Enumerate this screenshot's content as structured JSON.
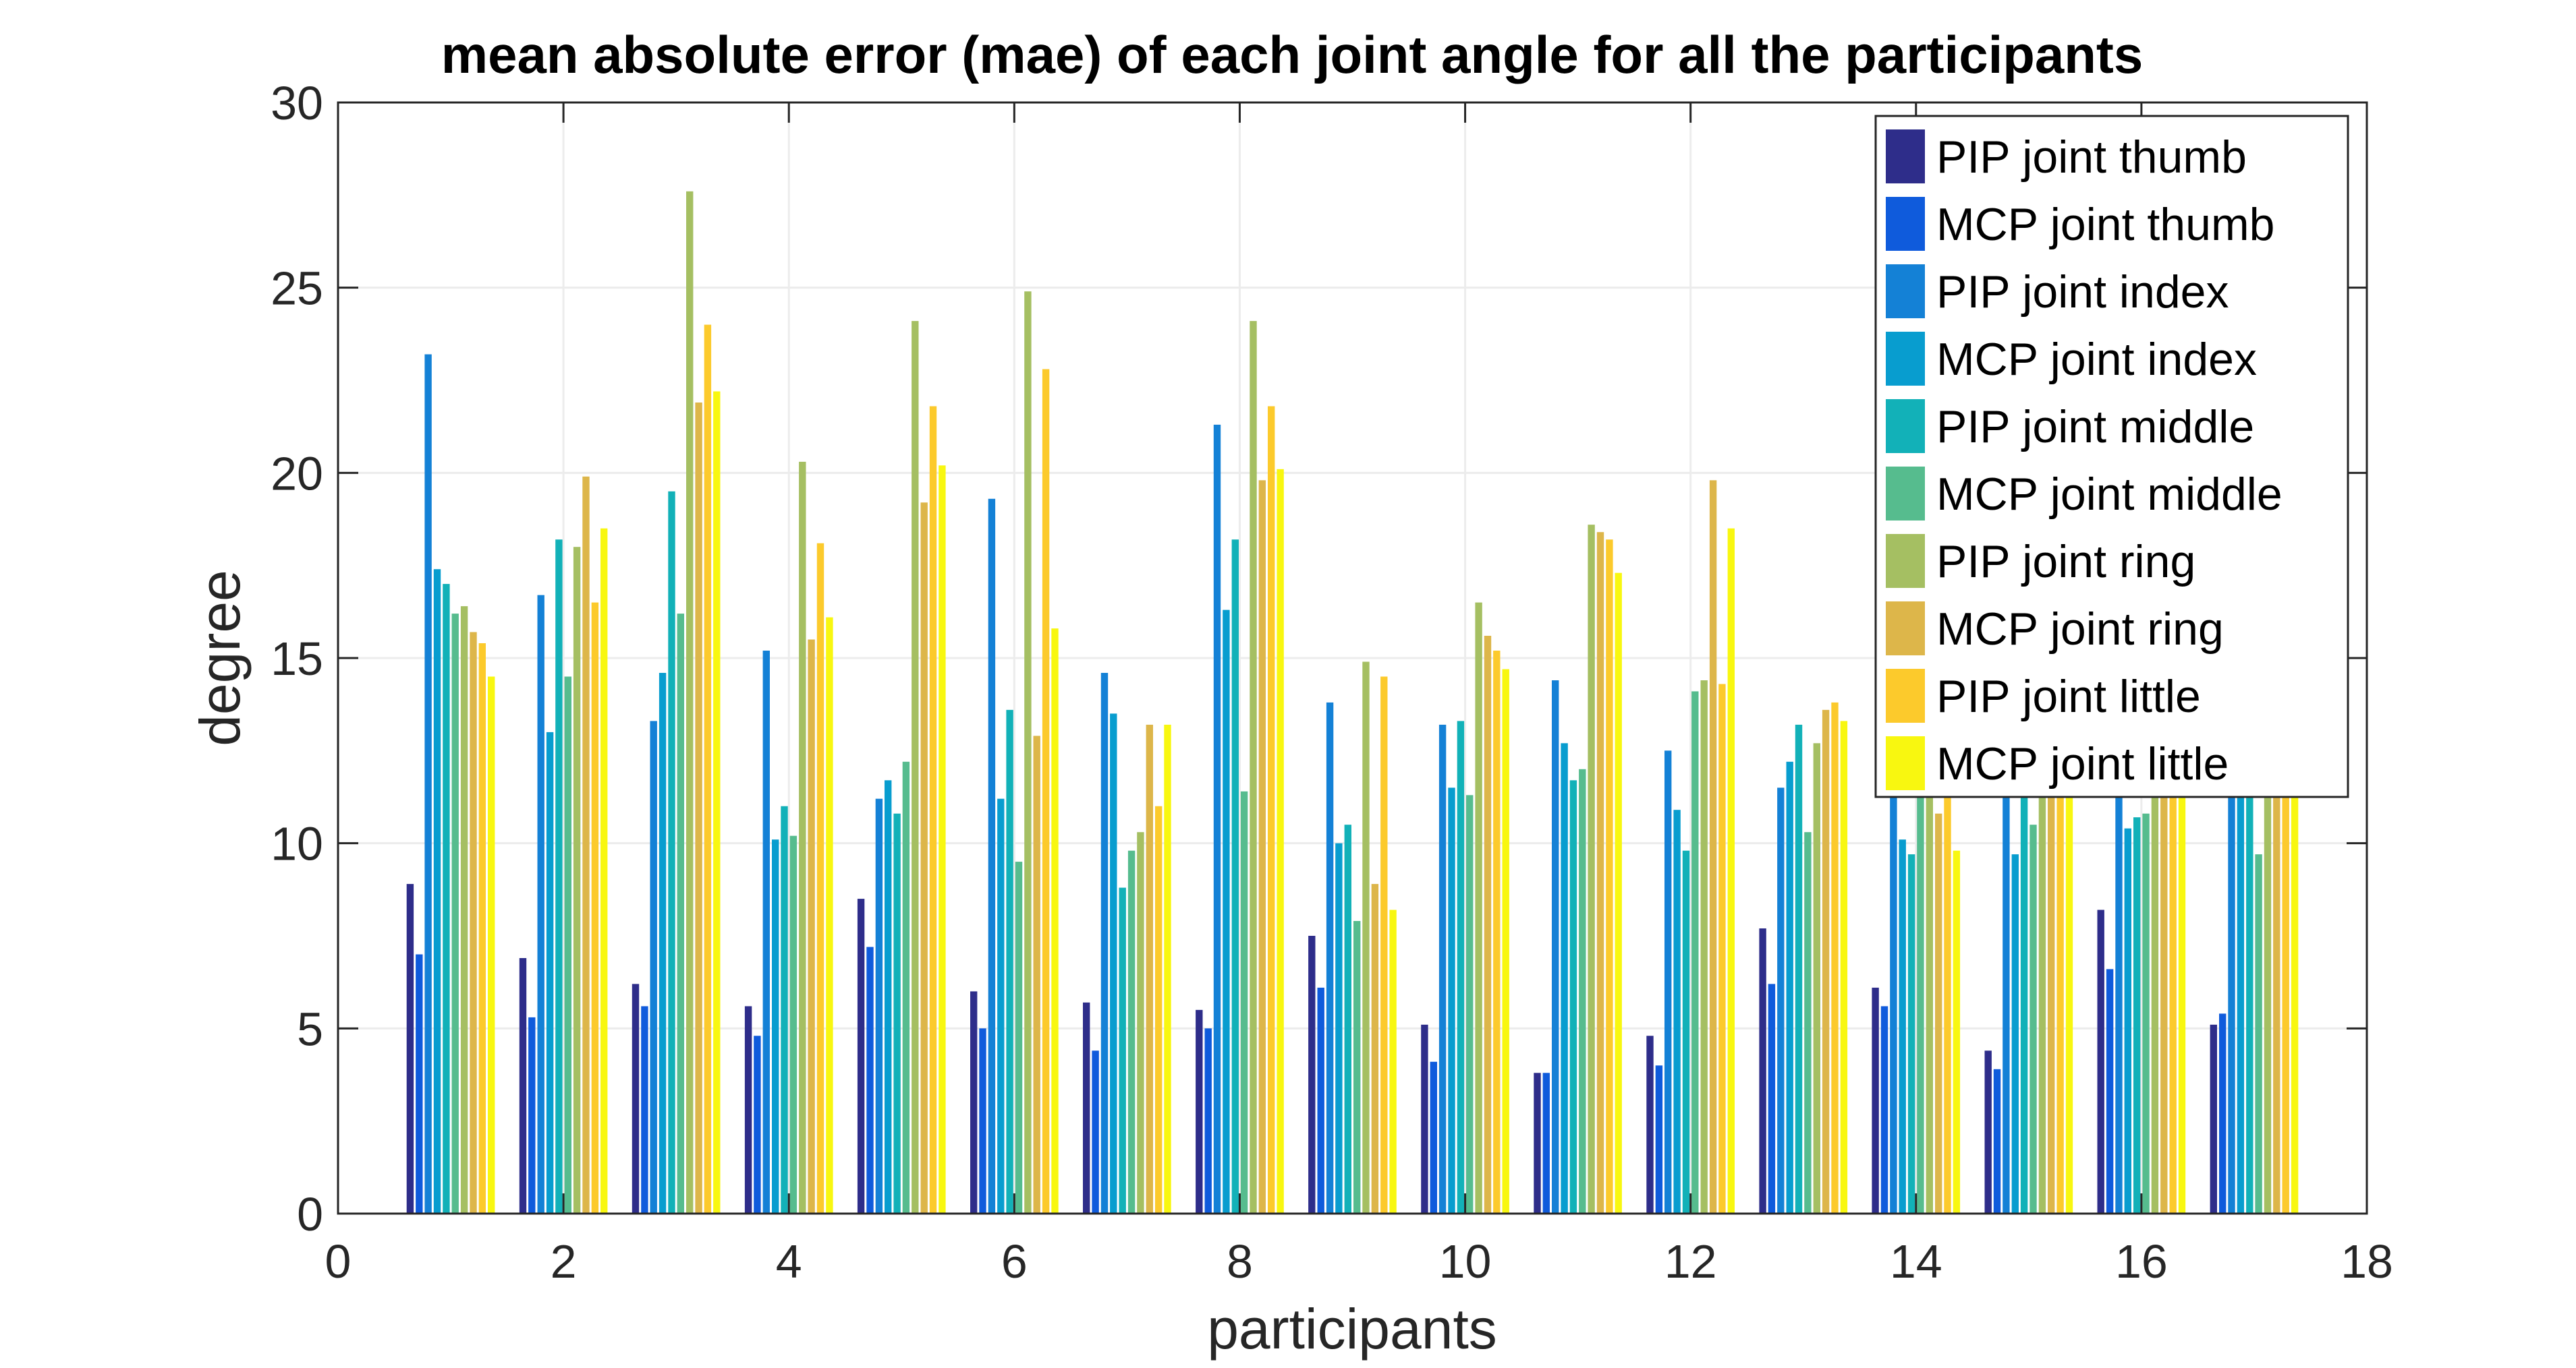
{
  "chart_data": {
    "type": "bar",
    "title": "mean absolute error (mae) of each joint angle for all the participants",
    "xlabel": "participants",
    "ylabel": "degree",
    "xlim": [
      0,
      18
    ],
    "ylim": [
      0,
      30
    ],
    "xticks": [
      0,
      2,
      4,
      6,
      8,
      10,
      12,
      14,
      16,
      18
    ],
    "yticks": [
      0,
      5,
      10,
      15,
      20,
      25,
      30
    ],
    "grid": true,
    "legend_position": "top-right",
    "categories": [
      1,
      2,
      3,
      4,
      5,
      6,
      7,
      8,
      9,
      10,
      11,
      12,
      13,
      14,
      15,
      16,
      17
    ],
    "series": [
      {
        "name": "PIP joint thumb",
        "color": "#2e2d8a",
        "values": [
          8.9,
          6.9,
          6.2,
          5.6,
          8.5,
          6.0,
          5.7,
          5.5,
          7.5,
          5.1,
          3.8,
          4.8,
          7.7,
          6.1,
          4.4,
          8.2,
          5.1
        ]
      },
      {
        "name": "MCP joint thumb",
        "color": "#0f5bdc",
        "values": [
          7.0,
          5.3,
          5.6,
          4.8,
          7.2,
          5.0,
          4.4,
          5.0,
          6.1,
          4.1,
          3.8,
          4.0,
          6.2,
          5.6,
          3.9,
          6.6,
          5.4
        ]
      },
      {
        "name": "PIP joint index",
        "color": "#1481d6",
        "values": [
          23.2,
          16.7,
          13.3,
          15.2,
          11.2,
          19.3,
          14.6,
          21.3,
          13.8,
          13.2,
          14.4,
          12.5,
          11.5,
          12.5,
          12.0,
          12.0,
          12.0
        ]
      },
      {
        "name": "MCP joint index",
        "color": "#089dcf",
        "values": [
          17.4,
          13.0,
          14.6,
          10.1,
          11.7,
          11.2,
          13.5,
          16.3,
          10.0,
          11.5,
          12.7,
          10.9,
          12.2,
          10.1,
          9.7,
          10.4,
          12.0
        ]
      },
      {
        "name": "PIP joint middle",
        "color": "#12b1b8",
        "values": [
          17.0,
          18.2,
          19.5,
          11.0,
          10.8,
          13.6,
          8.8,
          18.2,
          10.5,
          13.3,
          11.7,
          9.8,
          13.2,
          9.7,
          12.0,
          10.7,
          12.0
        ]
      },
      {
        "name": "MCP joint middle",
        "color": "#56bc8e",
        "values": [
          16.2,
          14.5,
          16.2,
          10.2,
          12.2,
          9.5,
          9.8,
          11.4,
          7.9,
          11.3,
          12.0,
          14.1,
          10.3,
          12.0,
          10.5,
          10.8,
          9.7
        ]
      },
      {
        "name": "PIP joint ring",
        "color": "#a5bf62",
        "values": [
          16.4,
          18.0,
          27.6,
          20.3,
          24.1,
          24.9,
          10.3,
          24.1,
          14.9,
          16.5,
          18.6,
          14.4,
          12.7,
          12.0,
          12.0,
          12.0,
          12.0
        ]
      },
      {
        "name": "MCP joint ring",
        "color": "#ddb64a",
        "values": [
          15.7,
          19.9,
          21.9,
          15.5,
          19.2,
          12.9,
          13.2,
          19.8,
          8.9,
          15.6,
          18.4,
          19.8,
          13.6,
          10.8,
          12.0,
          12.0,
          12.0
        ]
      },
      {
        "name": "PIP joint little",
        "color": "#fcca2c",
        "values": [
          15.4,
          16.5,
          24.0,
          18.1,
          21.8,
          22.8,
          11.0,
          21.8,
          14.5,
          15.2,
          18.2,
          14.3,
          13.8,
          12.0,
          12.0,
          12.0,
          12.0
        ]
      },
      {
        "name": "MCP joint little",
        "color": "#f8f710",
        "values": [
          14.5,
          18.5,
          22.2,
          16.1,
          20.2,
          15.8,
          13.2,
          20.1,
          8.2,
          14.7,
          17.3,
          18.5,
          13.3,
          9.8,
          12.0,
          12.0,
          12.0
        ]
      }
    ]
  }
}
